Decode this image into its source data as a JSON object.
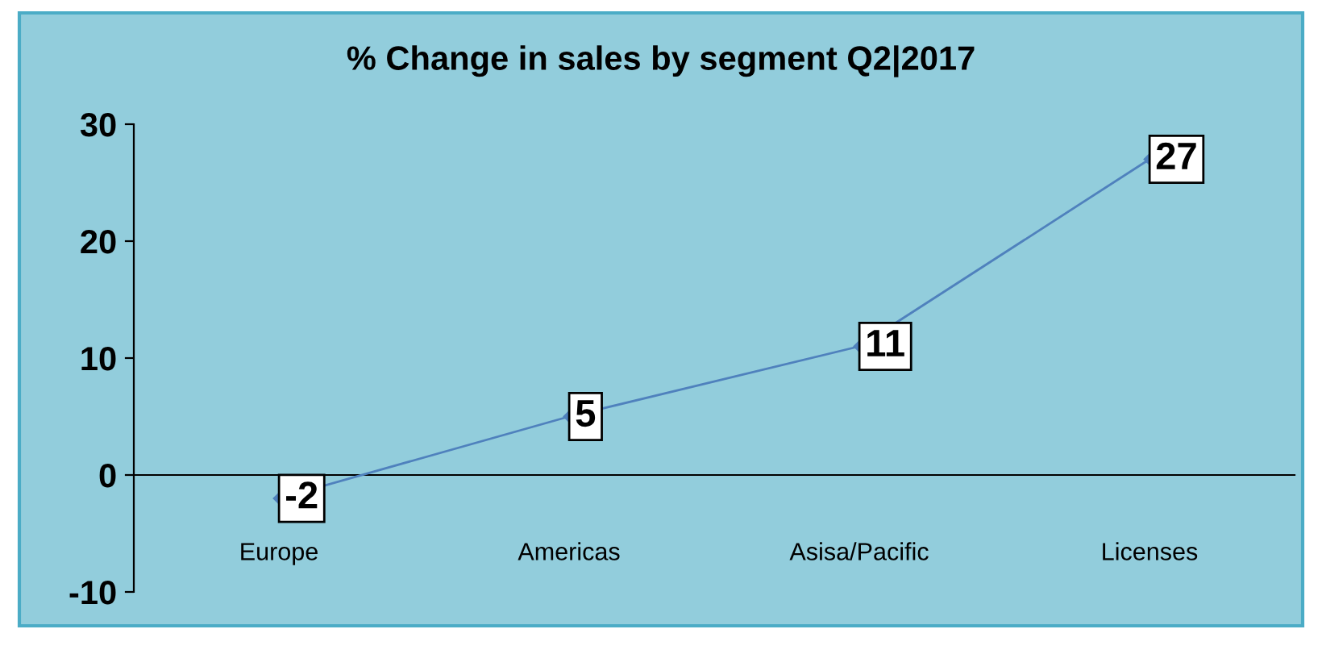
{
  "chart_data": {
    "type": "line",
    "title": "% Change in sales by segment Q2|2017",
    "categories": [
      "Europe",
      "Americas",
      "Asisa/Pacific",
      "Licenses"
    ],
    "values": [
      -2,
      5,
      11,
      27
    ],
    "color": "#4f81bd",
    "ylim": [
      -10,
      30
    ],
    "yticks": [
      -10,
      0,
      10,
      20,
      30
    ],
    "legend": false,
    "marker": "diamond",
    "line_style": "solid",
    "data_labels": true
  }
}
